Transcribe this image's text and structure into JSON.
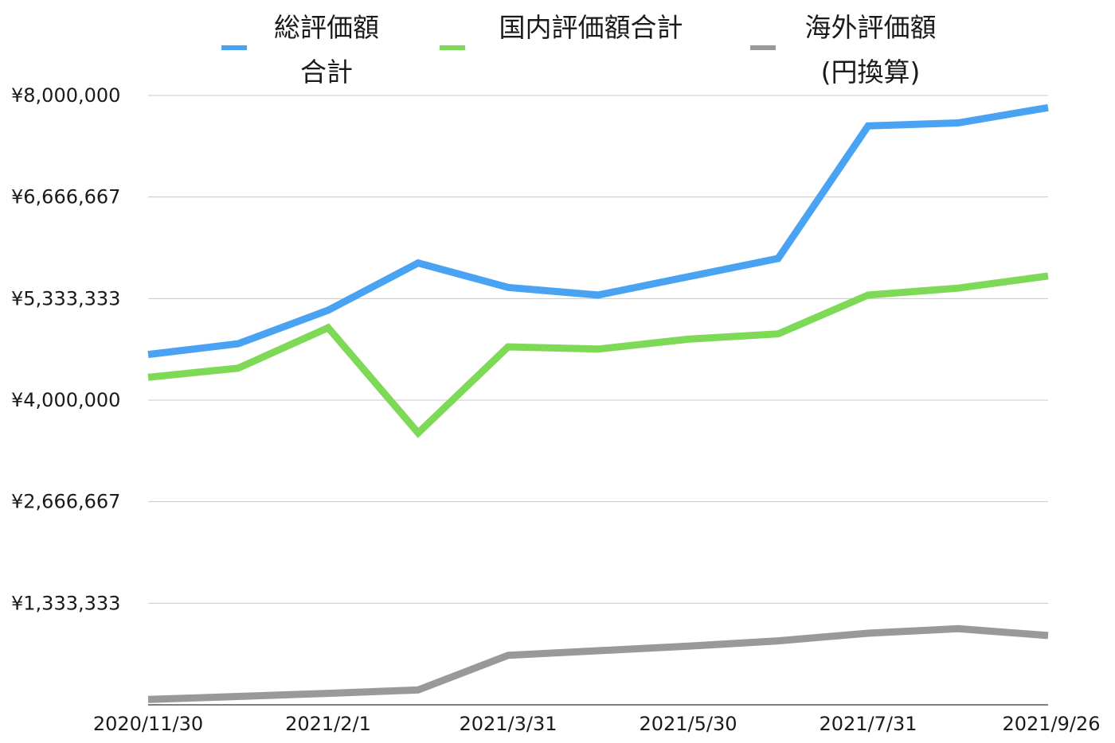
{
  "chart_data": {
    "type": "line",
    "title": "",
    "xlabel": "",
    "ylabel": "",
    "x": [
      "2020/11/30",
      "2020/12/31",
      "2021/2/1",
      "2021/3/1",
      "2021/3/31",
      "2021/4/30",
      "2021/5/30",
      "2021/6/30",
      "2021/7/31",
      "2021/8/31",
      "2021/9/26"
    ],
    "x_tick_labels": [
      "2020/11/30",
      "2021/2/1",
      "2021/3/31",
      "2021/5/30",
      "2021/7/31",
      "2021/9/26"
    ],
    "y_tick_labels": [
      "¥1,333,333",
      "¥2,666,667",
      "¥4,000,000",
      "¥5,333,333",
      "¥6,666,667",
      "¥8,000,000"
    ],
    "ylim": [
      0,
      8000000
    ],
    "grid": true,
    "legend_position": "top",
    "series": [
      {
        "name": "総評価額合計",
        "name_lines": [
          "総評価額",
          "合計"
        ],
        "color": "#4aa3f2",
        "values": [
          4600000,
          4740000,
          5180000,
          5800000,
          5480000,
          5380000,
          5620000,
          5860000,
          7600000,
          7640000,
          7840000
        ]
      },
      {
        "name": "国内評価額合計",
        "name_lines": [
          "国内評価額合計"
        ],
        "color": "#7ed957",
        "values": [
          4300000,
          4420000,
          4950000,
          3570000,
          4700000,
          4670000,
          4800000,
          4870000,
          5380000,
          5470000,
          5630000
        ]
      },
      {
        "name": "海外評価額(円換算)",
        "name_lines": [
          "海外評価額",
          "(円換算)"
        ],
        "color": "#999999",
        "values": [
          70000,
          110000,
          150000,
          195000,
          650000,
          710000,
          770000,
          840000,
          940000,
          1000000,
          910000
        ]
      }
    ]
  }
}
